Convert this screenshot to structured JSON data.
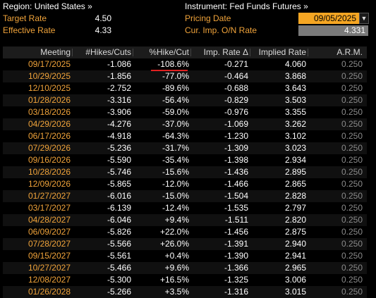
{
  "header": {
    "region_label": "Region: United States »",
    "target_rate_label": "Target Rate",
    "target_rate_value": "4.50",
    "effective_rate_label": "Effective Rate",
    "effective_rate_value": "4.33",
    "instrument_label": "Instrument: Fed Funds Futures »",
    "pricing_date_label": "Pricing Date",
    "pricing_date_value": "09/05/2025",
    "cur_imp_label": "Cur. Imp. O/N Rate",
    "cur_imp_value": "4.331"
  },
  "table": {
    "columns": [
      "Meeting",
      "#Hikes/Cuts",
      "%Hike/Cut",
      "Imp. Rate Δ",
      "Implied Rate",
      "A.R.M."
    ],
    "rows": [
      [
        "09/17/2025",
        "-1.086",
        "-108.6%",
        "-0.271",
        "4.060",
        "0.250"
      ],
      [
        "10/29/2025",
        "-1.856",
        "-77.0%",
        "-0.464",
        "3.868",
        "0.250"
      ],
      [
        "12/10/2025",
        "-2.752",
        "-89.6%",
        "-0.688",
        "3.643",
        "0.250"
      ],
      [
        "01/28/2026",
        "-3.316",
        "-56.4%",
        "-0.829",
        "3.503",
        "0.250"
      ],
      [
        "03/18/2026",
        "-3.906",
        "-59.0%",
        "-0.976",
        "3.355",
        "0.250"
      ],
      [
        "04/29/2026",
        "-4.276",
        "-37.0%",
        "-1.069",
        "3.262",
        "0.250"
      ],
      [
        "06/17/2026",
        "-4.918",
        "-64.3%",
        "-1.230",
        "3.102",
        "0.250"
      ],
      [
        "07/29/2026",
        "-5.236",
        "-31.7%",
        "-1.309",
        "3.023",
        "0.250"
      ],
      [
        "09/16/2026",
        "-5.590",
        "-35.4%",
        "-1.398",
        "2.934",
        "0.250"
      ],
      [
        "10/28/2026",
        "-5.746",
        "-15.6%",
        "-1.436",
        "2.895",
        "0.250"
      ],
      [
        "12/09/2026",
        "-5.865",
        "-12.0%",
        "-1.466",
        "2.865",
        "0.250"
      ],
      [
        "01/27/2027",
        "-6.016",
        "-15.0%",
        "-1.504",
        "2.828",
        "0.250"
      ],
      [
        "03/17/2027",
        "-6.139",
        "-12.4%",
        "-1.535",
        "2.797",
        "0.250"
      ],
      [
        "04/28/2027",
        "-6.046",
        "+9.4%",
        "-1.511",
        "2.820",
        "0.250"
      ],
      [
        "06/09/2027",
        "-5.826",
        "+22.0%",
        "-1.456",
        "2.875",
        "0.250"
      ],
      [
        "07/28/2027",
        "-5.566",
        "+26.0%",
        "-1.391",
        "2.940",
        "0.250"
      ],
      [
        "09/15/2027",
        "-5.561",
        "+0.4%",
        "-1.390",
        "2.941",
        "0.250"
      ],
      [
        "10/27/2027",
        "-5.466",
        "+9.6%",
        "-1.366",
        "2.965",
        "0.250"
      ],
      [
        "12/08/2027",
        "-5.300",
        "+16.5%",
        "-1.325",
        "3.006",
        "0.250"
      ],
      [
        "01/26/2028",
        "-5.266",
        "+3.5%",
        "-1.316",
        "3.015",
        "0.250"
      ]
    ]
  },
  "colors": {
    "background": "#000000",
    "accent_orange": "#f0a33a",
    "date_box": "#f5a623",
    "annotation_red": "#e02020",
    "arm_gray": "#8a8a8a"
  }
}
